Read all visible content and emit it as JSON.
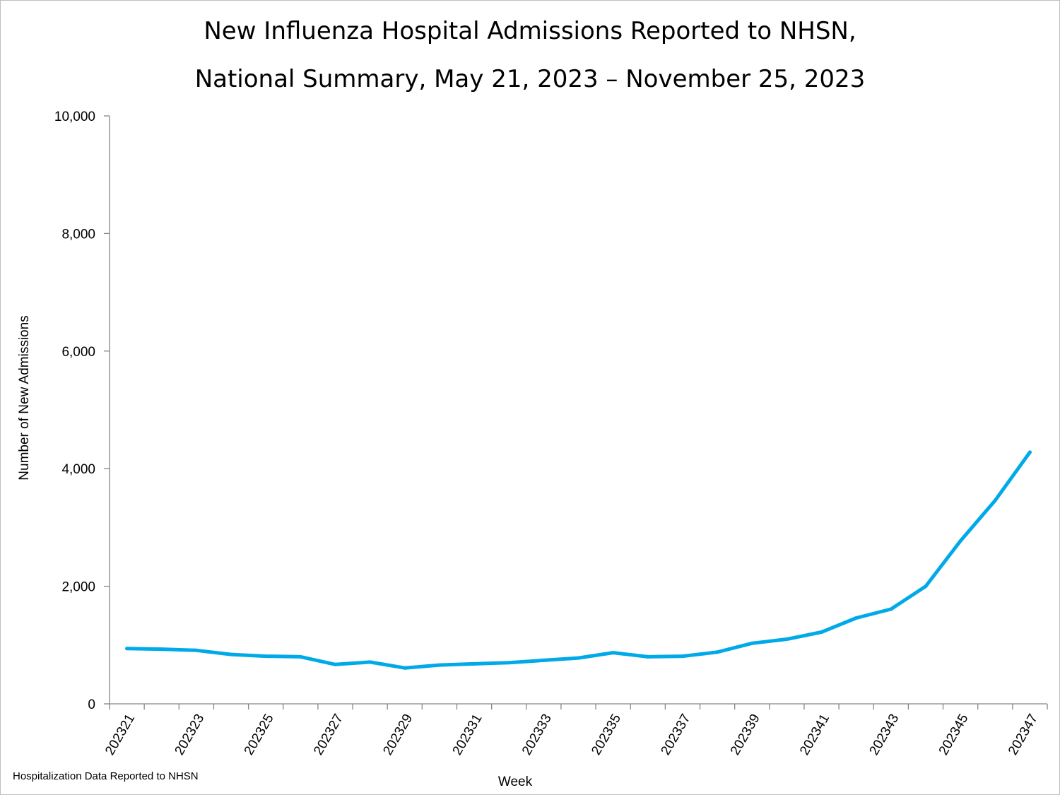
{
  "chart_data": {
    "type": "line",
    "title_line1": "New Influenza Hospital Admissions Reported to NHSN,",
    "title_line2": "National Summary, May 21, 2023 – November 25, 2023",
    "xlabel": "Week",
    "ylabel": "Number of New Admissions",
    "ylim": [
      0,
      10000
    ],
    "yticks": [
      0,
      2000,
      4000,
      6000,
      8000,
      10000
    ],
    "ytick_labels": [
      "0",
      "2,000",
      "4,000",
      "6,000",
      "8,000",
      "10,000"
    ],
    "x": [
      "202321",
      "202322",
      "202323",
      "202324",
      "202325",
      "202326",
      "202327",
      "202328",
      "202329",
      "202330",
      "202331",
      "202332",
      "202333",
      "202334",
      "202335",
      "202336",
      "202337",
      "202338",
      "202339",
      "202340",
      "202341",
      "202342",
      "202343",
      "202344",
      "202345",
      "202346",
      "202347"
    ],
    "xtick_labels": [
      "202321",
      "202323",
      "202325",
      "202327",
      "202329",
      "202331",
      "202333",
      "202335",
      "202337",
      "202339",
      "202341",
      "202343",
      "202345",
      "202347"
    ],
    "series": [
      {
        "values": [
          940,
          930,
          910,
          840,
          810,
          800,
          670,
          710,
          610,
          660,
          680,
          700,
          740,
          780,
          870,
          800,
          810,
          880,
          1030,
          1100,
          1220,
          1460,
          1610,
          2000,
          2770,
          3460,
          4280
        ],
        "color": "#00a9e8"
      }
    ],
    "grid": false,
    "legend": "none"
  },
  "footnote": "Hospitalization Data Reported to NHSN"
}
